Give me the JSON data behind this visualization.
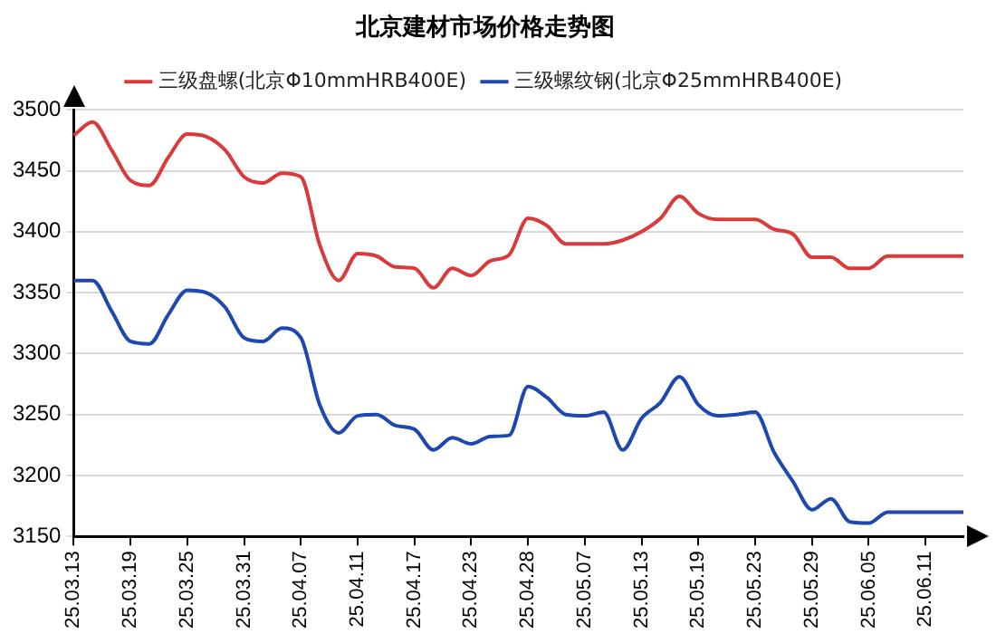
{
  "chart_data": {
    "type": "line",
    "title": "北京建材市场价格走势图",
    "categories": [
      "25.03.13",
      null,
      null,
      "25.03.19",
      null,
      null,
      "25.03.25",
      null,
      null,
      "25.03.31",
      null,
      null,
      "25.04.07",
      null,
      null,
      "25.04.11",
      null,
      null,
      "25.04.17",
      null,
      null,
      "25.04.23",
      null,
      null,
      "25.04.28",
      null,
      null,
      "25.05.07",
      null,
      null,
      "25.05.13",
      null,
      null,
      "25.05.19",
      null,
      null,
      "25.05.23",
      null,
      null,
      "25.05.29",
      null,
      null,
      "25.06.05",
      null,
      null,
      "25.06.11",
      null,
      null
    ],
    "series": [
      {
        "name": "三级盘螺(北京Φ10mmHRB400E)",
        "color": "#d93a3a",
        "values": [
          3479,
          3490,
          3467,
          3442,
          3438,
          3461,
          3480,
          3478,
          3467,
          3445,
          3440,
          3448,
          3445,
          3389,
          3360,
          3382,
          3380,
          3371,
          3370,
          3354,
          3370,
          3364,
          3376,
          3381,
          3411,
          3405,
          3390,
          3390,
          3390,
          3393,
          3400,
          3411,
          3429,
          3415,
          3410,
          3410,
          3410,
          3402,
          3398,
          3379,
          3379,
          3370,
          3370,
          3380,
          3380,
          3380,
          3380,
          3380
        ]
      },
      {
        "name": "三级螺纹钢(北京Φ25mmHRB400E)",
        "color": "#1f47b0",
        "values": [
          3360,
          3360,
          3335,
          3310,
          3308,
          3332,
          3352,
          3350,
          3338,
          3313,
          3310,
          3321,
          3313,
          3258,
          3235,
          3249,
          3250,
          3241,
          3238,
          3221,
          3231,
          3226,
          3232,
          3233,
          3273,
          3264,
          3250,
          3249,
          3252,
          3221,
          3247,
          3260,
          3281,
          3258,
          3249,
          3250,
          3252,
          3219,
          3195,
          3172,
          3181,
          3162,
          3161,
          3170,
          3170,
          3170,
          3170,
          3170
        ]
      }
    ],
    "ylim": [
      3150,
      3500
    ],
    "yticks": [
      3150,
      3200,
      3250,
      3300,
      3350,
      3400,
      3450,
      3500
    ],
    "grid": "y",
    "legend": "top",
    "marker": "none",
    "line_style": "solid"
  }
}
